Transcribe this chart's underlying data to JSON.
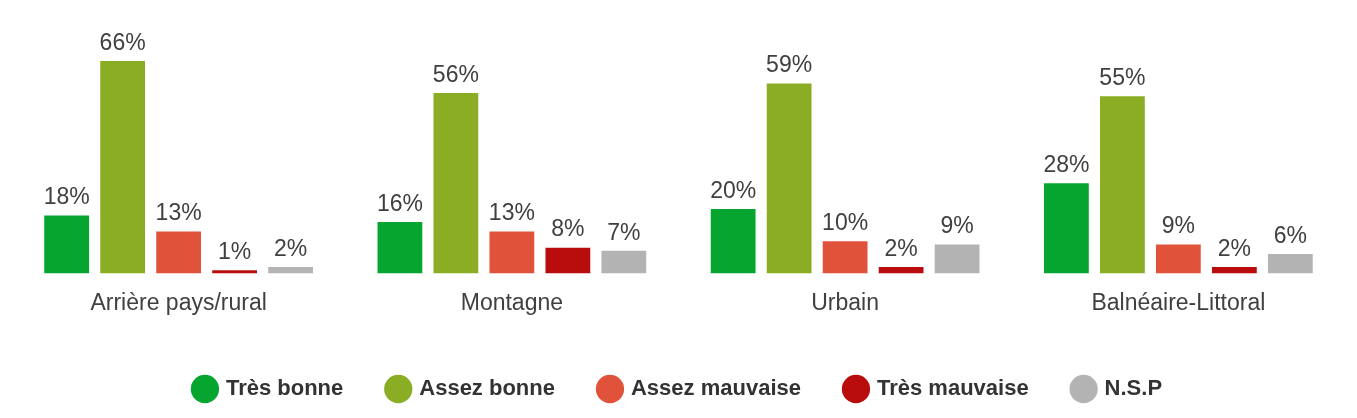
{
  "chart_data": {
    "type": "bar",
    "categories": [
      "Arrière pays/rural",
      "Montagne",
      "Urbain",
      "Balnéaire-Littoral"
    ],
    "series": [
      {
        "name": "Très bonne",
        "color": "#05a52f",
        "values": [
          18,
          16,
          20,
          28
        ],
        "value_labels": [
          "18%",
          "16%",
          "20%",
          "28%"
        ]
      },
      {
        "name": "Assez bonne",
        "color": "#8aad24",
        "values": [
          66,
          56,
          59,
          55
        ],
        "value_labels": [
          "66%",
          "56%",
          "59%",
          "55%"
        ]
      },
      {
        "name": "Assez mauvaise",
        "color": "#e0533a",
        "values": [
          13,
          13,
          10,
          9
        ],
        "value_labels": [
          "13%",
          "13%",
          "10%",
          "9%"
        ]
      },
      {
        "name": "Très mauvaise",
        "color": "#b90c0c",
        "values": [
          1,
          8,
          2,
          2
        ],
        "value_labels": [
          "1%",
          "8%",
          "2%",
          "2%"
        ]
      },
      {
        "name": "N.S.P",
        "color": "#b3b3b3",
        "values": [
          2,
          7,
          9,
          6
        ],
        "value_labels": [
          "2%",
          "7%",
          "9%",
          "6%"
        ]
      }
    ],
    "grid": false,
    "legend": "bottom",
    "tick_labels": "x"
  }
}
